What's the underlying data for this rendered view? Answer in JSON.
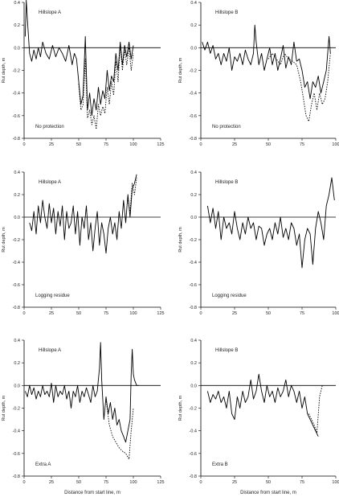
{
  "figure": {
    "x_axis_label": "Distance from start line, m",
    "y_axis_label": "Rut depth, m"
  },
  "chart_data": [
    {
      "type": "line",
      "title": "Hillslope A",
      "annotation": "No protection",
      "xlabel": "",
      "ylabel": "Rut depth, m",
      "xlim": [
        0,
        125
      ],
      "ylim": [
        -0.8,
        0.4
      ],
      "xticks": [
        "0",
        "25",
        "50",
        "75",
        "100",
        "125"
      ],
      "yticks": [
        "0.4",
        "0.2",
        "0.0",
        "-0.2",
        "-0.4",
        "-0.6",
        "-0.8"
      ],
      "series": [
        {
          "style": "solid",
          "color": "#000000",
          "x": [
            1,
            2,
            3,
            5,
            7,
            9,
            11,
            13,
            15,
            17,
            20,
            23,
            26,
            29,
            32,
            35,
            38,
            41,
            44,
            46,
            48,
            50,
            52,
            54,
            56,
            58,
            60,
            62,
            64,
            66,
            68,
            70,
            72,
            74,
            76,
            78,
            80,
            82,
            84,
            86,
            88,
            90,
            92,
            94,
            96,
            98,
            100
          ],
          "y": [
            0.1,
            0.42,
            0.25,
            -0.05,
            -0.12,
            -0.02,
            -0.1,
            0.0,
            -0.08,
            0.05,
            -0.05,
            -0.1,
            0.02,
            -0.08,
            0.0,
            -0.05,
            -0.12,
            0.02,
            -0.15,
            -0.05,
            -0.1,
            -0.3,
            -0.5,
            -0.42,
            0.1,
            -0.55,
            -0.4,
            -0.6,
            -0.45,
            -0.55,
            -0.35,
            -0.5,
            -0.38,
            -0.45,
            -0.2,
            -0.38,
            -0.25,
            -0.3,
            -0.05,
            -0.2,
            0.05,
            -0.15,
            0.02,
            -0.08,
            0.05,
            -0.1,
            0.02
          ]
        },
        {
          "style": "dotted",
          "color": "#000000",
          "x": [
            50,
            52,
            54,
            56,
            58,
            60,
            62,
            64,
            66,
            68,
            70,
            72,
            74,
            76,
            78,
            80,
            82,
            84,
            86,
            88,
            90,
            92,
            94,
            96,
            98,
            100
          ],
          "y": [
            -0.32,
            -0.55,
            -0.5,
            -0.1,
            -0.62,
            -0.55,
            -0.68,
            -0.6,
            -0.72,
            -0.5,
            -0.6,
            -0.52,
            -0.58,
            -0.35,
            -0.5,
            -0.3,
            -0.42,
            -0.12,
            -0.3,
            0.02,
            -0.2,
            -0.02,
            -0.15,
            0.0,
            -0.2,
            -0.05
          ]
        }
      ]
    },
    {
      "type": "line",
      "title": "Hillslope B",
      "annotation": "No protection",
      "xlabel": "",
      "ylabel": "Rut depth, m",
      "xlim": [
        0,
        100
      ],
      "ylim": [
        -0.8,
        0.4
      ],
      "xticks": [
        "0",
        "25",
        "50",
        "75",
        "100"
      ],
      "yticks": [
        "0.4",
        "0.2",
        "0.0",
        "-0.2",
        "-0.4",
        "-0.6",
        "-0.8"
      ],
      "series": [
        {
          "style": "solid",
          "color": "#000000",
          "x": [
            1,
            3,
            5,
            7,
            9,
            11,
            13,
            15,
            17,
            19,
            21,
            23,
            25,
            27,
            29,
            31,
            33,
            35,
            37,
            39,
            40,
            41,
            43,
            45,
            47,
            49,
            51,
            53,
            55,
            57,
            59,
            61,
            63,
            65,
            67,
            69,
            71,
            73,
            75,
            77,
            79,
            81,
            83,
            85,
            87,
            89,
            91,
            93,
            95,
            96
          ],
          "y": [
            0.05,
            -0.02,
            0.05,
            -0.05,
            0.02,
            -0.1,
            -0.05,
            -0.15,
            -0.05,
            -0.12,
            0.0,
            -0.2,
            -0.08,
            -0.12,
            -0.05,
            -0.15,
            -0.02,
            -0.1,
            -0.15,
            -0.05,
            0.2,
            0.05,
            -0.15,
            -0.05,
            -0.2,
            -0.1,
            0.0,
            -0.15,
            -0.05,
            -0.2,
            -0.1,
            0.02,
            -0.18,
            -0.08,
            -0.15,
            0.05,
            -0.12,
            -0.1,
            -0.2,
            -0.35,
            -0.3,
            -0.45,
            -0.3,
            -0.35,
            -0.25,
            -0.4,
            -0.3,
            -0.2,
            0.1,
            -0.05
          ]
        },
        {
          "style": "dotted",
          "color": "#000000",
          "x": [
            50,
            53,
            56,
            59,
            62,
            65,
            68,
            71,
            74,
            76,
            78,
            80,
            82,
            84,
            86,
            88,
            90,
            92,
            94,
            96
          ],
          "y": [
            -0.1,
            -0.05,
            -0.1,
            -0.15,
            -0.05,
            -0.1,
            -0.12,
            -0.15,
            -0.3,
            -0.45,
            -0.6,
            -0.65,
            -0.5,
            -0.4,
            -0.55,
            -0.4,
            -0.5,
            -0.45,
            -0.3,
            -0.05
          ]
        }
      ]
    },
    {
      "type": "line",
      "title": "Hillslope A",
      "annotation": "Logging residue",
      "xlabel": "",
      "ylabel": "Rut depth, m",
      "xlim": [
        0,
        125
      ],
      "ylim": [
        -0.8,
        0.4
      ],
      "xticks": [
        "0",
        "25",
        "50",
        "75",
        "100",
        "125"
      ],
      "yticks": [
        "0.4",
        "0.2",
        "0.0",
        "-0.2",
        "-0.4",
        "-0.6",
        "-0.8"
      ],
      "series": [
        {
          "style": "solid",
          "color": "#000000",
          "x": [
            5,
            7,
            9,
            11,
            13,
            15,
            17,
            19,
            21,
            23,
            25,
            27,
            29,
            31,
            33,
            35,
            37,
            39,
            41,
            43,
            45,
            47,
            49,
            51,
            53,
            55,
            57,
            59,
            61,
            63,
            65,
            67,
            69,
            71,
            73,
            75,
            77,
            79,
            81,
            83,
            85,
            87,
            89,
            91,
            93,
            95,
            97,
            99,
            101,
            103
          ],
          "y": [
            -0.05,
            -0.12,
            0.05,
            -0.15,
            0.1,
            -0.05,
            0.15,
            0.0,
            -0.1,
            0.12,
            -0.05,
            0.08,
            -0.15,
            0.05,
            -0.08,
            0.1,
            -0.2,
            0.05,
            -0.1,
            -0.05,
            0.1,
            -0.15,
            0.05,
            -0.25,
            0.0,
            -0.1,
            0.1,
            -0.2,
            -0.05,
            -0.3,
            -0.1,
            0.05,
            -0.25,
            -0.05,
            -0.15,
            -0.32,
            -0.1,
            0.0,
            -0.15,
            -0.05,
            -0.2,
            0.05,
            -0.1,
            0.15,
            -0.05,
            0.2,
            0.0,
            0.25,
            0.3,
            0.38
          ]
        },
        {
          "style": "dotted",
          "color": "#000000",
          "x": [
            95,
            97,
            99,
            101,
            103
          ],
          "y": [
            0.15,
            0.05,
            0.3,
            0.2,
            0.35
          ]
        }
      ]
    },
    {
      "type": "line",
      "title": "Hillslope B",
      "annotation": "Logging residue",
      "xlabel": "",
      "ylabel": "Rut depth, m",
      "xlim": [
        0,
        100
      ],
      "ylim": [
        -0.8,
        0.4
      ],
      "xticks": [
        "0",
        "25",
        "50",
        "75",
        "100"
      ],
      "yticks": [
        "0.4",
        "0.2",
        "0.0",
        "-0.2",
        "-0.4",
        "-0.6",
        "-0.8"
      ],
      "series": [
        {
          "style": "solid",
          "color": "#000000",
          "x": [
            5,
            7,
            9,
            11,
            13,
            15,
            17,
            19,
            21,
            23,
            25,
            27,
            29,
            31,
            33,
            35,
            37,
            39,
            41,
            43,
            45,
            47,
            49,
            51,
            53,
            55,
            57,
            59,
            61,
            63,
            65,
            67,
            69,
            71,
            73,
            75,
            77,
            79,
            81,
            83,
            85,
            87,
            89,
            91,
            93,
            95,
            97,
            99
          ],
          "y": [
            0.1,
            -0.05,
            0.08,
            -0.1,
            0.05,
            -0.2,
            0.0,
            -0.1,
            -0.05,
            -0.15,
            0.05,
            -0.1,
            -0.2,
            -0.05,
            -0.15,
            0.0,
            -0.1,
            -0.05,
            -0.2,
            -0.08,
            -0.1,
            -0.25,
            -0.15,
            -0.1,
            -0.2,
            -0.05,
            -0.15,
            0.0,
            -0.18,
            -0.1,
            -0.2,
            -0.05,
            -0.1,
            -0.25,
            -0.15,
            -0.45,
            -0.2,
            -0.1,
            -0.15,
            -0.42,
            -0.1,
            0.05,
            -0.05,
            -0.2,
            0.1,
            0.2,
            0.35,
            0.15
          ]
        }
      ]
    },
    {
      "type": "line",
      "title": "Hillslope A",
      "annotation": "Extra A",
      "xlabel": "Distance from start line, m",
      "ylabel": "Rut depth, m",
      "xlim": [
        0,
        125
      ],
      "ylim": [
        -0.8,
        0.4
      ],
      "xticks": [
        "0",
        "25",
        "50",
        "75",
        "100",
        "125"
      ],
      "yticks": [
        "0.4",
        "0.2",
        "0.0",
        "-0.2",
        "-0.4",
        "-0.6",
        "-0.8"
      ],
      "series": [
        {
          "style": "solid",
          "color": "#000000",
          "x": [
            1,
            3,
            5,
            7,
            9,
            11,
            13,
            15,
            17,
            19,
            21,
            23,
            25,
            27,
            29,
            31,
            33,
            35,
            37,
            39,
            41,
            43,
            45,
            47,
            49,
            51,
            53,
            55,
            57,
            59,
            61,
            63,
            65,
            67,
            69,
            70,
            71,
            73,
            75,
            77,
            79,
            81,
            83,
            85,
            87,
            89,
            91,
            93,
            95,
            97,
            98,
            99,
            100,
            101,
            103,
            105
          ],
          "y": [
            -0.05,
            -0.1,
            0.0,
            -0.08,
            -0.02,
            -0.12,
            -0.05,
            -0.1,
            0.0,
            -0.08,
            -0.05,
            -0.1,
            0.02,
            -0.15,
            0.0,
            -0.1,
            -0.05,
            -0.08,
            0.0,
            -0.12,
            -0.05,
            -0.2,
            -0.05,
            -0.1,
            0.0,
            -0.15,
            -0.05,
            -0.1,
            -0.02,
            -0.08,
            -0.15,
            0.0,
            -0.1,
            -0.05,
            0.15,
            0.38,
            0.05,
            -0.3,
            -0.1,
            -0.25,
            -0.15,
            -0.3,
            -0.2,
            -0.35,
            -0.3,
            -0.4,
            -0.45,
            -0.5,
            -0.4,
            -0.3,
            0.1,
            0.32,
            0.1,
            0.05,
            0.0,
            0.0
          ]
        },
        {
          "style": "dotted",
          "color": "#000000",
          "x": [
            75,
            78,
            81,
            84,
            87,
            90,
            93,
            96,
            98,
            100
          ],
          "y": [
            -0.12,
            -0.35,
            -0.45,
            -0.5,
            -0.55,
            -0.58,
            -0.6,
            -0.65,
            -0.4,
            -0.2
          ]
        }
      ]
    },
    {
      "type": "line",
      "title": "Hillslope B",
      "annotation": "Extra B",
      "xlabel": "Distance from start line, m",
      "ylabel": "Rut depth, m",
      "xlim": [
        0,
        100
      ],
      "ylim": [
        -0.8,
        0.4
      ],
      "xticks": [
        "0",
        "25",
        "50",
        "75",
        "100"
      ],
      "yticks": [
        "0.4",
        "0.2",
        "0.0",
        "-0.2",
        "-0.4",
        "-0.6",
        "-0.8"
      ],
      "series": [
        {
          "style": "solid",
          "color": "#000000",
          "x": [
            5,
            7,
            9,
            11,
            13,
            15,
            17,
            19,
            21,
            23,
            25,
            27,
            29,
            31,
            33,
            35,
            37,
            39,
            41,
            43,
            45,
            47,
            49,
            51,
            53,
            55,
            57,
            59,
            61,
            63,
            65,
            67,
            69,
            71,
            73,
            75,
            77,
            79,
            81,
            83,
            85,
            87
          ],
          "y": [
            -0.05,
            -0.15,
            -0.08,
            -0.12,
            -0.05,
            -0.15,
            -0.1,
            -0.2,
            -0.05,
            -0.25,
            -0.3,
            -0.1,
            -0.2,
            -0.05,
            -0.15,
            -0.1,
            0.05,
            -0.12,
            -0.05,
            0.1,
            -0.05,
            -0.15,
            0.0,
            -0.1,
            -0.05,
            -0.15,
            -0.02,
            -0.1,
            -0.05,
            0.05,
            -0.1,
            0.0,
            -0.05,
            -0.15,
            -0.05,
            -0.2,
            -0.1,
            -0.25,
            -0.3,
            -0.35,
            -0.4,
            -0.45
          ]
        },
        {
          "style": "dotted",
          "color": "#000000",
          "x": [
            80,
            82,
            84,
            86,
            88,
            90
          ],
          "y": [
            -0.25,
            -0.3,
            -0.35,
            -0.42,
            -0.1,
            0.0
          ]
        }
      ]
    }
  ]
}
